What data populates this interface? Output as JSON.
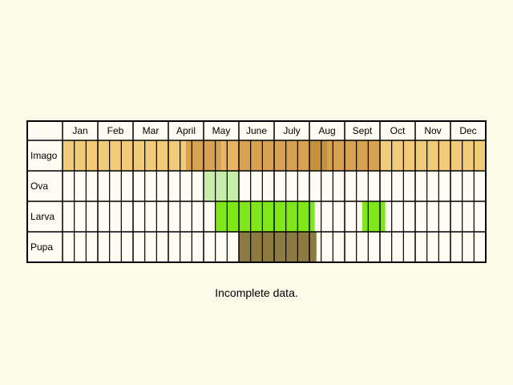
{
  "chart_data": {
    "type": "heatmap",
    "title": "",
    "columns": [
      "Jan",
      "Feb",
      "Mar",
      "April",
      "May",
      "June",
      "July",
      "Aug",
      "Sept",
      "Oct",
      "Nov",
      "Dec"
    ],
    "subdivisions_per_month": 3,
    "rows": [
      {
        "name": "Imago",
        "color": "#d9a253",
        "intervals": [
          {
            "start": 0.0,
            "end": 3.5,
            "color": "#f2cb78"
          },
          {
            "start": 3.5,
            "end": 4.5,
            "color": "#d9a253"
          },
          {
            "start": 4.5,
            "end": 5.0,
            "color": "#e6b566"
          },
          {
            "start": 5.0,
            "end": 7.0,
            "color": "#d9a253"
          },
          {
            "start": 7.0,
            "end": 7.5,
            "color": "#c4913f"
          },
          {
            "start": 7.5,
            "end": 9.0,
            "color": "#d9a253"
          },
          {
            "start": 9.0,
            "end": 12.0,
            "color": "#f2cb78"
          }
        ]
      },
      {
        "name": "Ova",
        "color": "#c6edaa",
        "intervals": [
          {
            "start": 4.0,
            "end": 5.0,
            "color": "#c6edaa"
          }
        ]
      },
      {
        "name": "Larva",
        "color": "#7fe61a",
        "intervals": [
          {
            "start": 4.33,
            "end": 7.15,
            "color": "#7fe61a"
          },
          {
            "start": 8.5,
            "end": 9.15,
            "color": "#7fe61a"
          }
        ]
      },
      {
        "name": "Pupa",
        "color": "#8c7a40",
        "intervals": [
          {
            "start": 5.0,
            "end": 7.2,
            "color": "#8c7a40"
          }
        ]
      }
    ],
    "note": "Incomplete data.",
    "grid": true,
    "legend": "none"
  },
  "colors": {
    "background": "#fcfae8",
    "cell": "#fdfbf2",
    "grid": "#000000"
  }
}
